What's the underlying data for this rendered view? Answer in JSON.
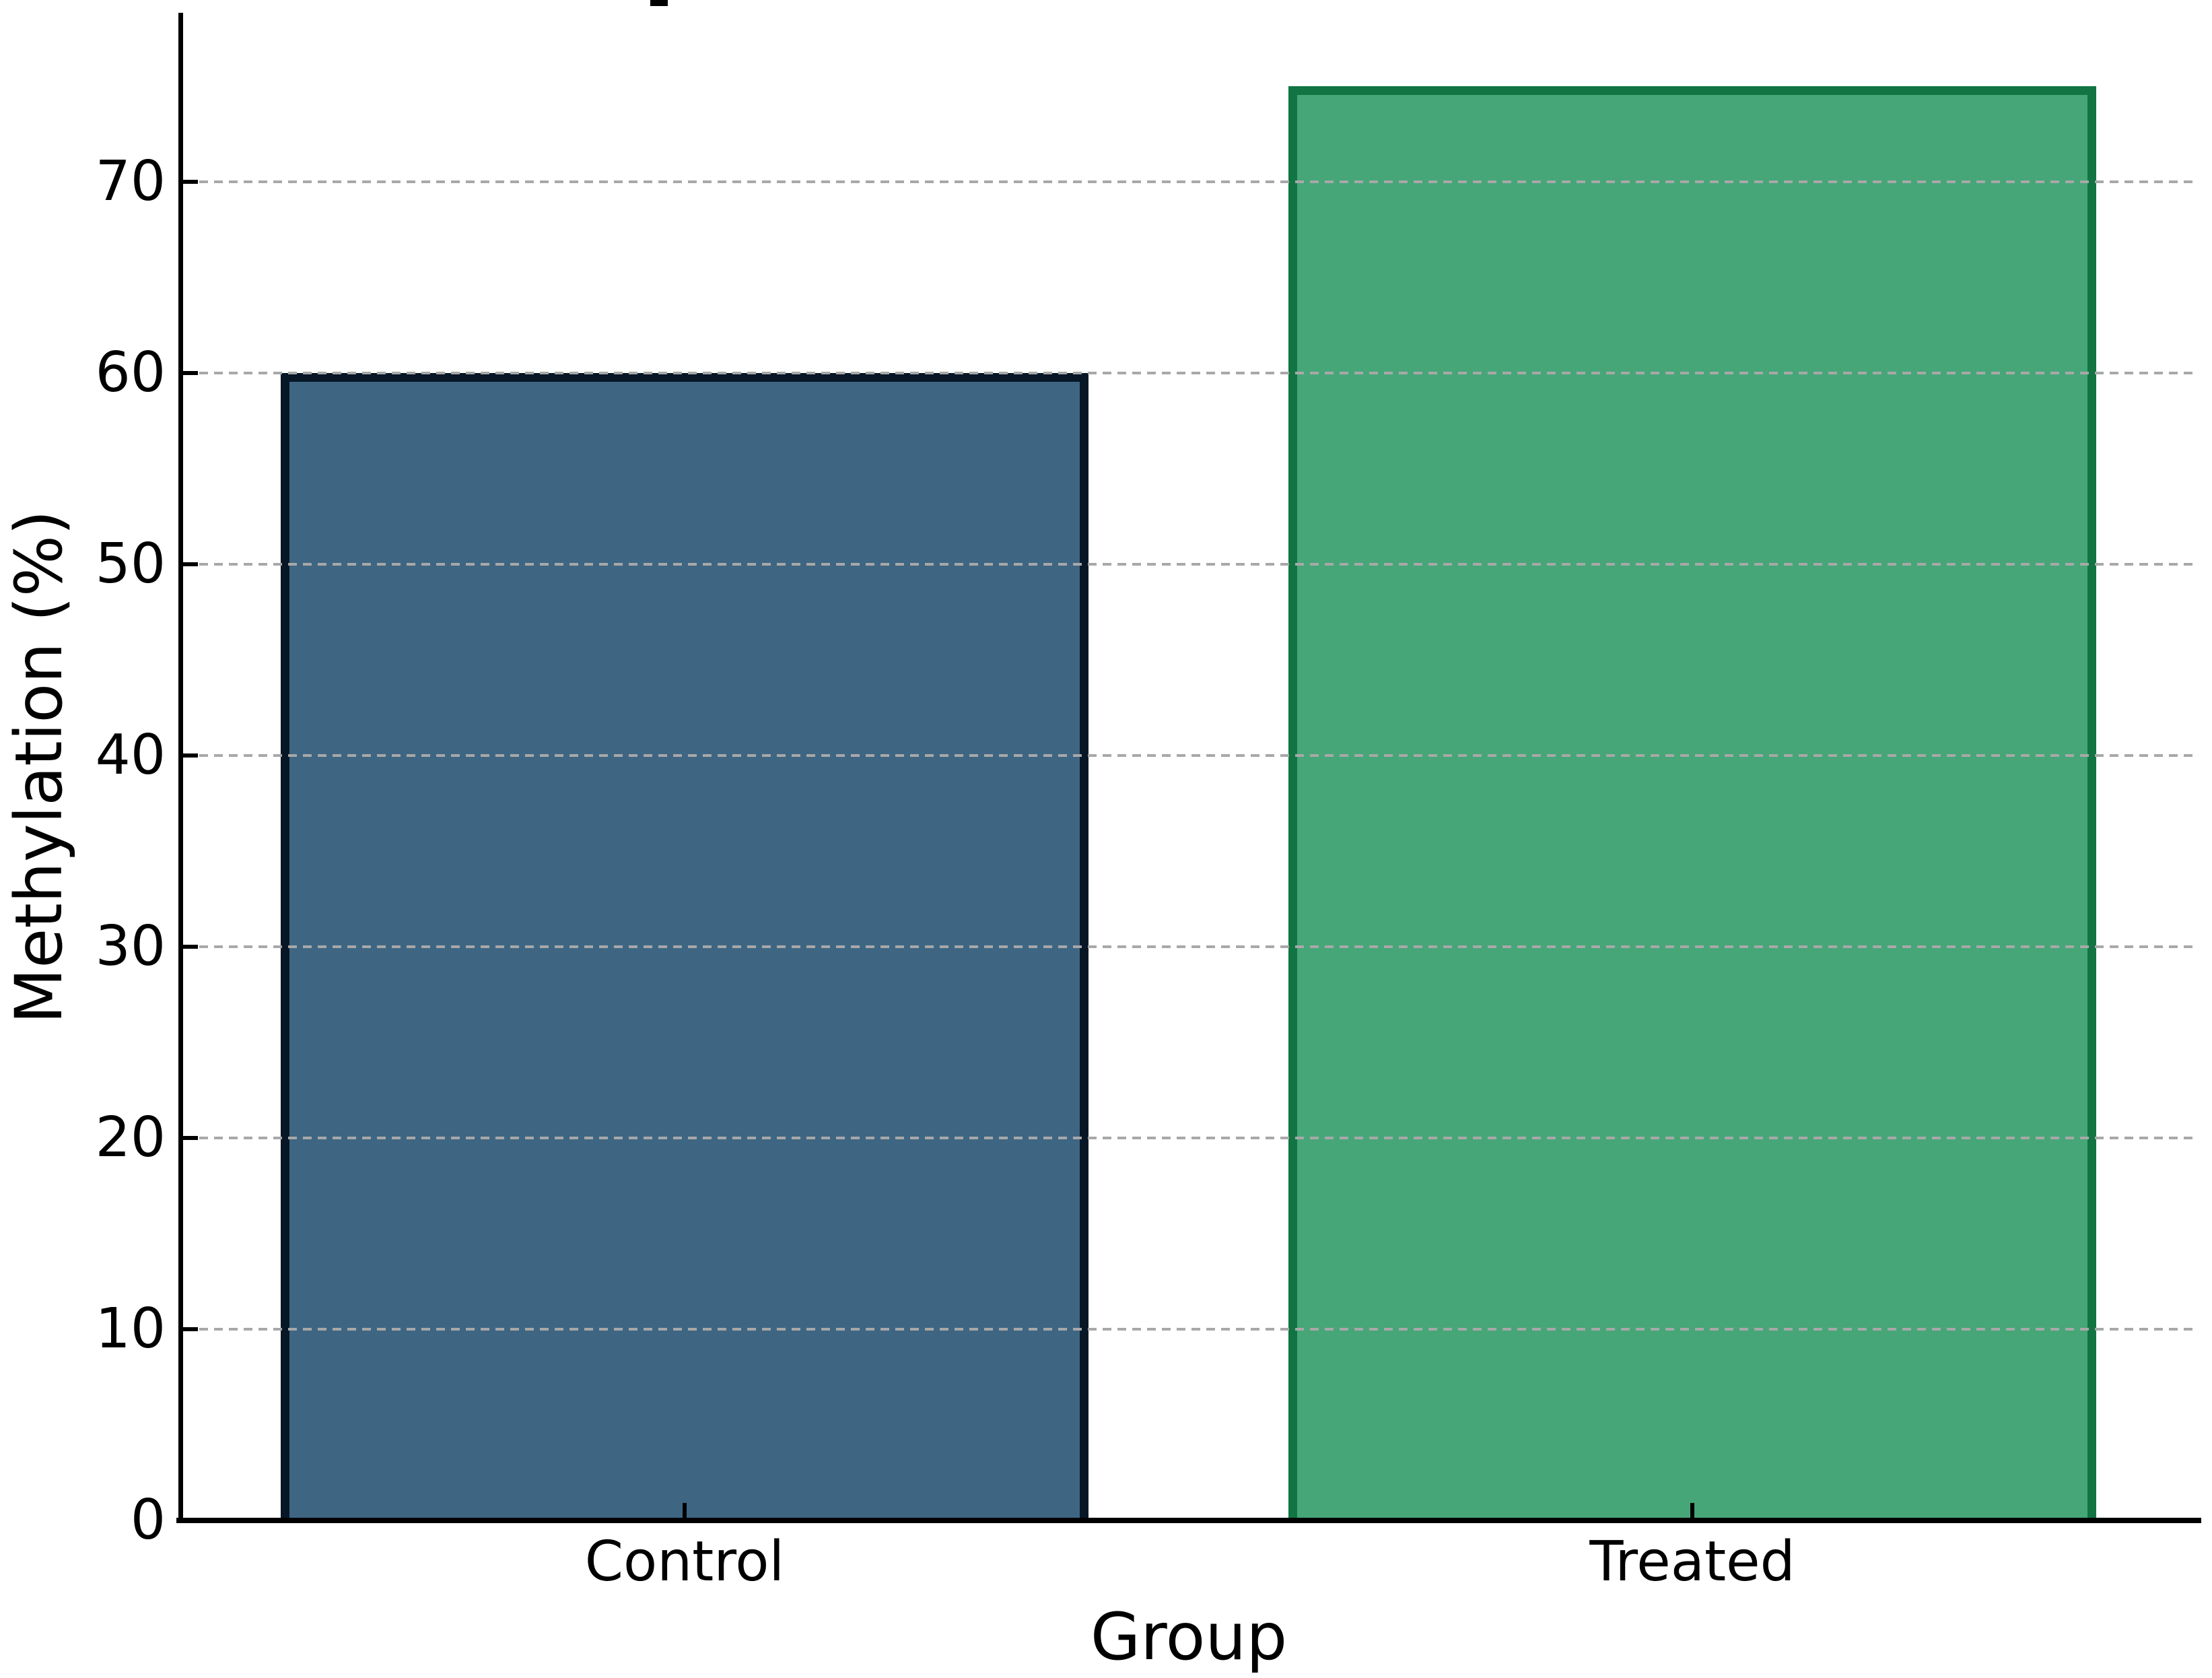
{
  "chart_data": {
    "type": "bar",
    "categories": [
      "Control",
      "Treated"
    ],
    "values": [
      60,
      75
    ],
    "xlabel": "Group",
    "ylabel": "Methylation (%)",
    "ylim": [
      0,
      79
    ],
    "yticks": [
      0,
      10,
      20,
      30,
      40,
      50,
      60,
      70
    ],
    "grid": "horizontal dashed gridlines, drawn over bars",
    "grid_color": "#a8a8a8",
    "tick_direction": "in",
    "legend": "none",
    "background_color": "#ffffff",
    "axis_color": "#000000",
    "title_cropped_fragment_visible": true,
    "bars": [
      {
        "category": "Control",
        "value": 60,
        "fill": "#3e6683",
        "edge": "#081726"
      },
      {
        "category": "Treated",
        "value": 75,
        "fill": "#46a678",
        "edge": "#117442"
      }
    ]
  }
}
